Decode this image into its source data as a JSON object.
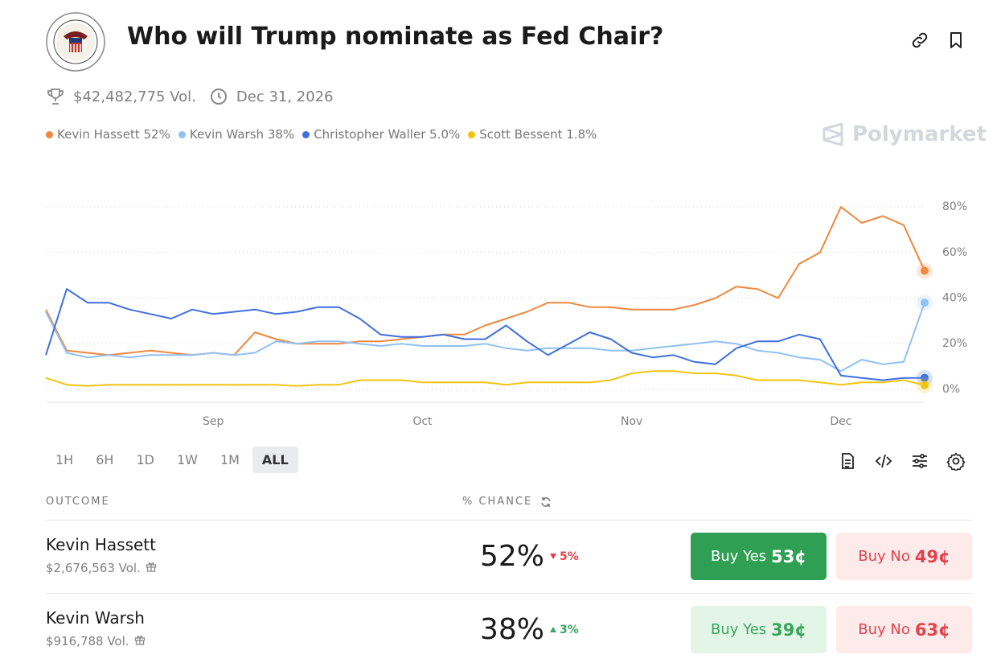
{
  "header": {
    "title": "Who will Trump nominate as Fed Chair?",
    "volume": "$42,482,775 Vol.",
    "end_date": "Dec 31, 2026"
  },
  "watermark": "Polymarket",
  "chart_data": {
    "type": "line",
    "categories": [
      null,
      null,
      null,
      null,
      null,
      null,
      null,
      null,
      "Sep",
      null,
      null,
      null,
      null,
      null,
      null,
      null,
      null,
      null,
      "Oct",
      null,
      null,
      null,
      null,
      null,
      null,
      null,
      null,
      null,
      "Nov",
      null,
      null,
      null,
      null,
      null,
      null,
      null,
      null,
      null,
      "Dec",
      null,
      null,
      null,
      null
    ],
    "series": [
      {
        "name": "Kevin Hassett",
        "legend_value": "52%",
        "color": "#f0883e",
        "values": [
          35,
          17,
          16,
          15,
          16,
          17,
          16,
          15,
          16,
          15,
          25,
          22,
          20,
          20,
          20,
          21,
          21,
          22,
          23,
          24,
          24,
          28,
          31,
          34,
          38,
          38,
          36,
          36,
          35,
          35,
          35,
          37,
          40,
          45,
          44,
          40,
          55,
          60,
          80,
          73,
          76,
          72,
          52
        ]
      },
      {
        "name": "Kevin Warsh",
        "legend_value": "38%",
        "color": "#8fc1f2",
        "values": [
          34,
          16,
          14,
          15,
          14,
          15,
          15,
          15,
          16,
          15,
          16,
          21,
          20,
          21,
          21,
          20,
          19,
          20,
          19,
          19,
          19,
          20,
          18,
          17,
          18,
          18,
          18,
          17,
          17,
          18,
          19,
          20,
          21,
          20,
          17,
          16,
          14,
          13,
          8,
          13,
          11,
          12,
          38
        ]
      },
      {
        "name": "Christopher Waller",
        "legend_value": "5.0%",
        "color": "#3f6fe0",
        "values": [
          15,
          44,
          38,
          38,
          35,
          33,
          31,
          35,
          33,
          34,
          35,
          33,
          34,
          36,
          36,
          31,
          24,
          23,
          23,
          24,
          22,
          22,
          28,
          21,
          15,
          20,
          25,
          22,
          16,
          14,
          15,
          12,
          11,
          18,
          21,
          21,
          24,
          22,
          6,
          5,
          4,
          5,
          5
        ]
      },
      {
        "name": "Scott Bessent",
        "legend_value": "1.8%",
        "color": "#f2c40f",
        "values": [
          5,
          2,
          1.5,
          2,
          2,
          2,
          2,
          2,
          2,
          2,
          2,
          2,
          1.5,
          2,
          2,
          4,
          4,
          4,
          3,
          3,
          3,
          3,
          2,
          3,
          3,
          3,
          3,
          4,
          7,
          8,
          8,
          7,
          7,
          6,
          4,
          4,
          4,
          3,
          2,
          3,
          3,
          4,
          1.8
        ]
      }
    ],
    "ylim": [
      -5,
      85
    ],
    "yticks": [
      {
        "value": 0,
        "label": "0%"
      },
      {
        "value": 20,
        "label": "20%"
      },
      {
        "value": 40,
        "label": "40%"
      },
      {
        "value": 60,
        "label": "60%"
      },
      {
        "value": 80,
        "label": "80%"
      }
    ],
    "grid": true
  },
  "time_ranges": {
    "options": [
      "1H",
      "6H",
      "1D",
      "1W",
      "1M",
      "ALL"
    ],
    "selected": "ALL"
  },
  "table": {
    "headers": [
      "OUTCOME",
      "% CHANCE"
    ],
    "rows": [
      {
        "name": "Kevin Hassett",
        "volume": "$2,676,563 Vol.",
        "chance": "52%",
        "change": "5%",
        "direction": "down",
        "buy_yes": "Buy Yes",
        "yes_price": "53¢",
        "buy_no": "Buy No",
        "no_price": "49¢",
        "highlighted": true
      },
      {
        "name": "Kevin Warsh",
        "volume": "$916,788 Vol.",
        "chance": "38%",
        "change": "3%",
        "direction": "up",
        "buy_yes": "Buy Yes",
        "yes_price": "39¢",
        "buy_no": "Buy No",
        "no_price": "63¢",
        "highlighted": false
      }
    ]
  }
}
